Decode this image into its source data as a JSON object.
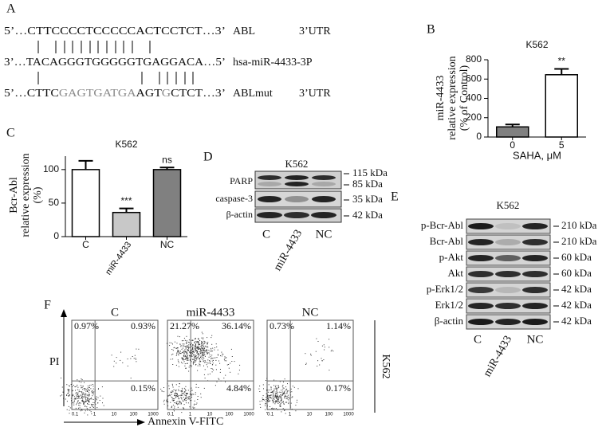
{
  "alignment": {
    "label": "A",
    "rows": [
      {
        "segments": [
          "5’…CTTCCCCTCCCCCACTCCTCT…3’"
        ],
        "name": "ABL",
        "region": "3’UTR"
      },
      {
        "segments": [
          "3’…TACAGGGTGGGGGTGAGGACA…5’"
        ],
        "name": "hsa-miR-4433-3P"
      },
      {
        "segments": [
          "5’…CTTC",
          "GAGTGATGA",
          "AGT",
          "G",
          "CTCT…3’"
        ],
        "name": "ABLmut",
        "region": "3’UTR"
      }
    ]
  },
  "chart_data": [
    {
      "type": "bar",
      "panel": "B",
      "title": "K562",
      "x_label": "SAHA, μM",
      "y_label": [
        "miR-4433",
        "relative expression",
        "(% of Control)"
      ],
      "categories": [
        "0",
        "5"
      ],
      "values": [
        105,
        645
      ],
      "errors": [
        25,
        60
      ],
      "colors": [
        "#808080",
        "#ffffff"
      ],
      "annotations": [
        null,
        "**"
      ],
      "ylim": [
        0,
        800
      ],
      "yticks": [
        0,
        200,
        400,
        600,
        800
      ]
    },
    {
      "type": "bar",
      "panel": "C",
      "title": "K562",
      "y_label": [
        "Bcr-Abl",
        "relative expression",
        "(%)"
      ],
      "categories": [
        "C",
        "miR-4433",
        "NC"
      ],
      "values": [
        100,
        36,
        100
      ],
      "errors": [
        13,
        6,
        3
      ],
      "colors": [
        "#ffffff",
        "#c8c8c8",
        "#808080"
      ],
      "annotations": [
        null,
        "***",
        "ns"
      ],
      "ylim": [
        0,
        120
      ],
      "yticks": [
        0,
        50,
        100
      ]
    }
  ],
  "blot_d": {
    "label": "D",
    "cell_line": "K562",
    "proteins": [
      "PARP",
      "caspase-3",
      "β-actin"
    ],
    "markers": [
      "115 kDa",
      "85 kDa",
      "35 kDa",
      "42 kDa"
    ],
    "lanes": [
      "C",
      "miR-4433",
      "NC"
    ]
  },
  "blot_e": {
    "label": "E",
    "cell_line": "K562",
    "proteins": [
      "p-Bcr-Abl",
      "Bcr-Abl",
      "p-Akt",
      "Akt",
      "p-Erk1/2",
      "Erk1/2",
      "β-actin"
    ],
    "sizes": [
      "210 kDa",
      "210 kDa",
      "60 kDa",
      "60 kDa",
      "42 kDa",
      "42 kDa",
      "42 kDa"
    ],
    "lanes": [
      "C",
      "miR-4433",
      "NC"
    ]
  },
  "flow": {
    "label": "F",
    "cell_line": "K562",
    "y_label": "PI",
    "x_label": "Annexin V-FITC",
    "xticks": [
      "0.1",
      "1",
      "10",
      "100",
      "1000"
    ],
    "samples": [
      {
        "name": "C",
        "upper_left": "0.97%",
        "upper_right": "0.93%",
        "lower_right": "0.15%"
      },
      {
        "name": "miR-4433",
        "upper_left": "21.27%",
        "upper_right": "36.14%",
        "lower_right": "4.84%"
      },
      {
        "name": "NC",
        "upper_left": "0.73%",
        "upper_right": "1.14%",
        "lower_right": "0.17%"
      }
    ]
  }
}
